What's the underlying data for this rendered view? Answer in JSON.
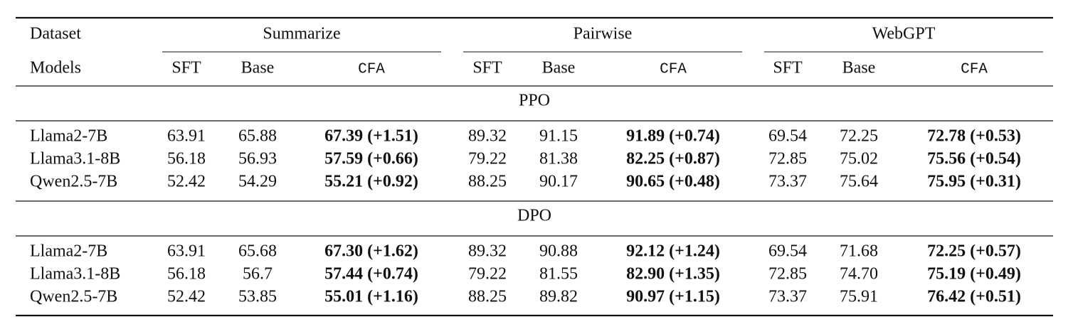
{
  "header": {
    "first_column": [
      "Dataset",
      "Models"
    ],
    "groups": [
      {
        "name": "Summarize",
        "columns": [
          "SFT",
          "Base",
          "CFA"
        ]
      },
      {
        "name": "Pairwise",
        "columns": [
          "SFT",
          "Base",
          "CFA"
        ]
      },
      {
        "name": "WebGPT",
        "columns": [
          "SFT",
          "Base",
          "CFA"
        ]
      }
    ]
  },
  "sections": [
    {
      "title": "PPO",
      "rows": [
        {
          "model": "Llama2-7B",
          "cells": [
            "63.91",
            "65.88",
            "67.39 (+1.51)",
            "89.32",
            "91.15",
            "91.89 (+0.74)",
            "69.54",
            "72.25",
            "72.78 (+0.53)"
          ]
        },
        {
          "model": "Llama3.1-8B",
          "cells": [
            "56.18",
            "56.93",
            "57.59 (+0.66)",
            "79.22",
            "81.38",
            "82.25 (+0.87)",
            "72.85",
            "75.02",
            "75.56 (+0.54)"
          ]
        },
        {
          "model": "Qwen2.5-7B",
          "cells": [
            "52.42",
            "54.29",
            "55.21 (+0.92)",
            "88.25",
            "90.17",
            "90.65 (+0.48)",
            "73.37",
            "75.64",
            "75.95 (+0.31)"
          ]
        }
      ]
    },
    {
      "title": "DPO",
      "rows": [
        {
          "model": "Llama2-7B",
          "cells": [
            "63.91",
            "65.68",
            "67.30 (+1.62)",
            "89.32",
            "90.88",
            "92.12 (+1.24)",
            "69.54",
            "71.68",
            "72.25 (+0.57)"
          ]
        },
        {
          "model": "Llama3.1-8B",
          "cells": [
            "56.18",
            "56.7",
            "57.44 (+0.74)",
            "79.22",
            "81.55",
            "82.90 (+1.35)",
            "72.85",
            "74.70",
            "75.19 (+0.49)"
          ]
        },
        {
          "model": "Qwen2.5-7B",
          "cells": [
            "52.42",
            "53.85",
            "55.01 (+1.16)",
            "88.25",
            "89.82",
            "90.97 (+1.15)",
            "73.37",
            "75.91",
            "76.42 (+0.51)"
          ]
        }
      ]
    }
  ]
}
